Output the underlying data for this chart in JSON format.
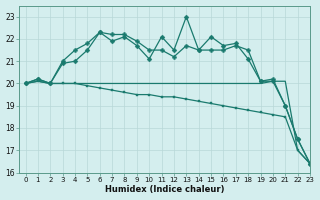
{
  "xlabel": "Humidex (Indice chaleur)",
  "bg_color": "#d4eeee",
  "line_color": "#1a7a6e",
  "grid_color": "#b8d8d8",
  "xlim": [
    -0.5,
    23
  ],
  "ylim": [
    16,
    23.5
  ],
  "yticks": [
    16,
    17,
    18,
    19,
    20,
    21,
    22,
    23
  ],
  "xticks": [
    0,
    1,
    2,
    3,
    4,
    5,
    6,
    7,
    8,
    9,
    10,
    11,
    12,
    13,
    14,
    15,
    16,
    17,
    18,
    19,
    20,
    21,
    22,
    23
  ],
  "line1_x": [
    0,
    1,
    2,
    3,
    4,
    5,
    6,
    7,
    8,
    9,
    10,
    11,
    12,
    13,
    14,
    15,
    16,
    17,
    18,
    19,
    20,
    21,
    22,
    23
  ],
  "line1_y": [
    20.0,
    20.2,
    20.0,
    20.9,
    21.0,
    21.5,
    22.3,
    21.9,
    22.1,
    21.7,
    21.1,
    22.1,
    21.5,
    23.0,
    21.5,
    22.1,
    21.7,
    21.8,
    21.1,
    20.1,
    20.1,
    19.0,
    17.5,
    16.4
  ],
  "line2_x": [
    0,
    1,
    2,
    3,
    4,
    5,
    6,
    7,
    8,
    9,
    10,
    11,
    12,
    13,
    14,
    15,
    16,
    17,
    18,
    19,
    20,
    21,
    22,
    23
  ],
  "line2_y": [
    20.0,
    20.2,
    20.0,
    21.0,
    21.5,
    21.8,
    22.3,
    22.2,
    22.2,
    21.9,
    21.5,
    21.5,
    21.2,
    21.7,
    21.5,
    21.5,
    21.5,
    21.7,
    21.5,
    20.1,
    20.2,
    19.0,
    17.5,
    16.4
  ],
  "line3_x": [
    0,
    1,
    2,
    3,
    4,
    5,
    6,
    7,
    8,
    9,
    10,
    11,
    12,
    13,
    14,
    15,
    16,
    17,
    18,
    19,
    20,
    21,
    22,
    23
  ],
  "line3_y": [
    20.0,
    20.1,
    20.0,
    20.0,
    20.0,
    19.9,
    19.8,
    19.7,
    19.6,
    19.5,
    19.5,
    19.4,
    19.4,
    19.3,
    19.2,
    19.1,
    19.0,
    18.9,
    18.8,
    18.7,
    18.6,
    18.5,
    17.0,
    16.4
  ],
  "line4_x": [
    0,
    1,
    2,
    3,
    4,
    5,
    6,
    7,
    8,
    9,
    10,
    11,
    12,
    13,
    14,
    15,
    16,
    17,
    18,
    19,
    20,
    21,
    22,
    23
  ],
  "line4_y": [
    20.0,
    20.1,
    20.0,
    20.0,
    20.0,
    20.0,
    20.0,
    20.0,
    20.0,
    20.0,
    20.0,
    20.0,
    20.0,
    20.0,
    20.0,
    20.0,
    20.0,
    20.0,
    20.0,
    20.0,
    20.1,
    20.1,
    17.0,
    16.4
  ]
}
